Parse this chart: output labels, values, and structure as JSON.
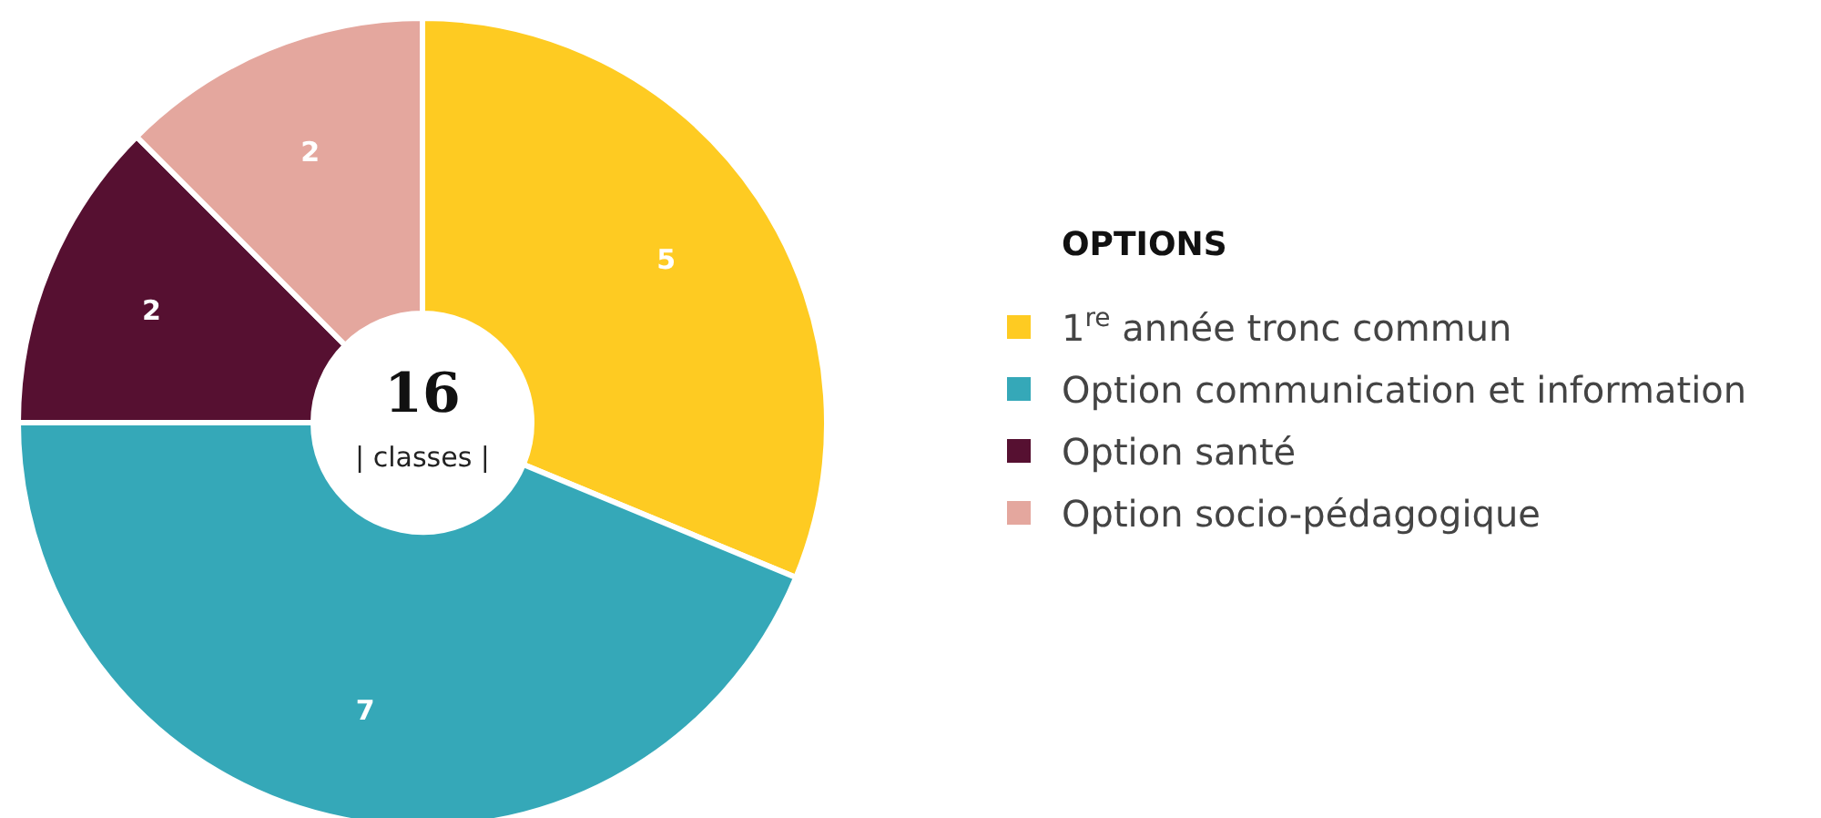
{
  "chart_data": {
    "type": "donut",
    "legend_title": "OPTIONS",
    "categories": [
      "1$^{re}$ année tronc commun",
      "Option communication et information",
      "Option santé",
      "Option socio-pédagogique"
    ],
    "values": [
      5,
      7,
      2,
      2
    ],
    "colors": [
      "#fecb22",
      "#35a8b8",
      "#561031",
      "#e4a79e"
    ],
    "data_labels": true,
    "legend": "right",
    "annotations": [
      "16",
      "| classes |"
    ]
  }
}
